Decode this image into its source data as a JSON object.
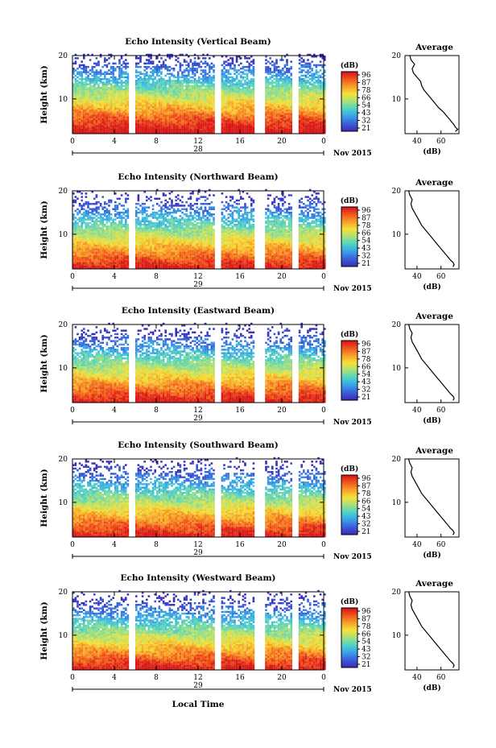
{
  "figure": {
    "xlabel": "Local Time",
    "date_label": "Nov 2015",
    "colorbar_unit": "(dB)",
    "colorbar_ticks": [
      "96",
      "87",
      "78",
      "66",
      "54",
      "43",
      "32",
      "21"
    ],
    "colorbar_colors": [
      "#d8181a",
      "#f25a1d",
      "#f7a32a",
      "#f5e23a",
      "#a7e07a",
      "#50d3c8",
      "#38a5e8",
      "#3a62dc",
      "#3b2fb8"
    ]
  },
  "chart_data": [
    {
      "type": "heatmap",
      "title": "Echo Intensity (Vertical Beam)",
      "ylabel": "Height (km)",
      "yticks": [
        "20",
        "10"
      ],
      "xticks": [
        "0",
        "4",
        "8",
        "12",
        "16",
        "20",
        "0"
      ],
      "date_day": "28",
      "ylim": [
        2,
        20
      ],
      "xlim": [
        0,
        24
      ],
      "data_gaps_hours": [
        [
          5.4,
          6.0
        ],
        [
          13.6,
          14.2
        ],
        [
          17.4,
          18.4
        ],
        [
          21.0,
          21.5
        ]
      ],
      "average_profile": {
        "title": "Average",
        "xlabel": "(dB)",
        "xticks": [
          "40",
          "60"
        ],
        "yticks": [
          "20",
          "10"
        ],
        "xlim": [
          30,
          75
        ],
        "height_km": [
          2.5,
          3,
          3.5,
          4,
          5,
          6,
          7,
          8,
          9,
          10,
          11,
          12,
          13,
          14,
          15,
          16,
          17,
          18,
          19,
          20
        ],
        "db": [
          72,
          74,
          72,
          71,
          68,
          65,
          62,
          58,
          55,
          52,
          49,
          46,
          44,
          43,
          40,
          37,
          36,
          38,
          35,
          34
        ]
      }
    },
    {
      "type": "heatmap",
      "title": "Echo Intensity (Northward Beam)",
      "ylabel": "Height (km)",
      "yticks": [
        "20",
        "10"
      ],
      "xticks": [
        "0",
        "4",
        "8",
        "12",
        "16",
        "20",
        "0"
      ],
      "date_day": "29",
      "ylim": [
        2,
        20
      ],
      "xlim": [
        0,
        24
      ],
      "data_gaps_hours": [
        [
          5.4,
          6.0
        ],
        [
          13.6,
          14.2
        ],
        [
          17.4,
          18.4
        ],
        [
          21.0,
          21.5
        ]
      ],
      "average_profile": {
        "title": "Average",
        "xlabel": "(dB)",
        "xticks": [
          "40",
          "60"
        ],
        "yticks": [
          "20",
          "10"
        ],
        "xlim": [
          30,
          75
        ],
        "height_km": [
          2.5,
          3,
          3.5,
          4,
          5,
          6,
          7,
          8,
          9,
          10,
          11,
          12,
          13,
          14,
          15,
          16,
          17,
          18,
          19,
          20
        ],
        "db": [
          70,
          71,
          70,
          68,
          65,
          62,
          59,
          56,
          53,
          50,
          47,
          44,
          42,
          40,
          38,
          36,
          35,
          36,
          34,
          33
        ]
      }
    },
    {
      "type": "heatmap",
      "title": "Echo Intensity (Eastward Beam)",
      "ylabel": "Height (km)",
      "yticks": [
        "20",
        "10"
      ],
      "xticks": [
        "0",
        "4",
        "8",
        "12",
        "16",
        "20",
        "0"
      ],
      "date_day": "29",
      "ylim": [
        2,
        20
      ],
      "xlim": [
        0,
        24
      ],
      "data_gaps_hours": [
        [
          5.4,
          6.0
        ],
        [
          13.6,
          14.2
        ],
        [
          17.4,
          18.4
        ],
        [
          21.0,
          21.5
        ]
      ],
      "average_profile": {
        "title": "Average",
        "xlabel": "(dB)",
        "xticks": [
          "40",
          "60"
        ],
        "yticks": [
          "20",
          "10"
        ],
        "xlim": [
          30,
          75
        ],
        "height_km": [
          2.5,
          3,
          3.5,
          4,
          5,
          6,
          7,
          8,
          9,
          10,
          11,
          12,
          13,
          14,
          15,
          16,
          17,
          18,
          19,
          20
        ],
        "db": [
          70,
          71,
          70,
          68,
          65,
          62,
          59,
          56,
          53,
          50,
          47,
          44,
          42,
          40,
          38,
          36,
          35,
          36,
          34,
          33
        ]
      }
    },
    {
      "type": "heatmap",
      "title": "Echo Intensity (Southward Beam)",
      "ylabel": "Height (km)",
      "yticks": [
        "20",
        "10"
      ],
      "xticks": [
        "0",
        "4",
        "8",
        "12",
        "16",
        "20",
        "0"
      ],
      "date_day": "29",
      "ylim": [
        2,
        20
      ],
      "xlim": [
        0,
        24
      ],
      "data_gaps_hours": [
        [
          5.4,
          6.0
        ],
        [
          13.6,
          14.2
        ],
        [
          17.4,
          18.4
        ],
        [
          21.0,
          21.5
        ]
      ],
      "average_profile": {
        "title": "Average",
        "xlabel": "(dB)",
        "xticks": [
          "40",
          "60"
        ],
        "yticks": [
          "20",
          "10"
        ],
        "xlim": [
          30,
          75
        ],
        "height_km": [
          2.5,
          3,
          3.5,
          4,
          5,
          6,
          7,
          8,
          9,
          10,
          11,
          12,
          13,
          14,
          15,
          16,
          17,
          18,
          19,
          20
        ],
        "db": [
          70,
          71,
          70,
          68,
          65,
          62,
          59,
          56,
          53,
          50,
          47,
          44,
          42,
          40,
          38,
          36,
          35,
          36,
          34,
          33
        ]
      }
    },
    {
      "type": "heatmap",
      "title": "Echo Intensity (Westward Beam)",
      "ylabel": "Height (km)",
      "yticks": [
        "20",
        "10"
      ],
      "xticks": [
        "0",
        "4",
        "8",
        "12",
        "16",
        "20",
        "0"
      ],
      "date_day": "29",
      "ylim": [
        2,
        20
      ],
      "xlim": [
        0,
        24
      ],
      "data_gaps_hours": [
        [
          5.4,
          6.0
        ],
        [
          13.6,
          14.2
        ],
        [
          17.4,
          18.4
        ],
        [
          21.0,
          21.5
        ]
      ],
      "average_profile": {
        "title": "Average",
        "xlabel": "(dB)",
        "xticks": [
          "40",
          "60"
        ],
        "yticks": [
          "20",
          "10"
        ],
        "xlim": [
          30,
          75
        ],
        "height_km": [
          2.5,
          3,
          3.5,
          4,
          5,
          6,
          7,
          8,
          9,
          10,
          11,
          12,
          13,
          14,
          15,
          16,
          17,
          18,
          19,
          20
        ],
        "db": [
          70,
          71,
          70,
          68,
          65,
          62,
          59,
          56,
          53,
          50,
          47,
          44,
          42,
          40,
          38,
          36,
          35,
          36,
          34,
          33
        ]
      }
    }
  ]
}
